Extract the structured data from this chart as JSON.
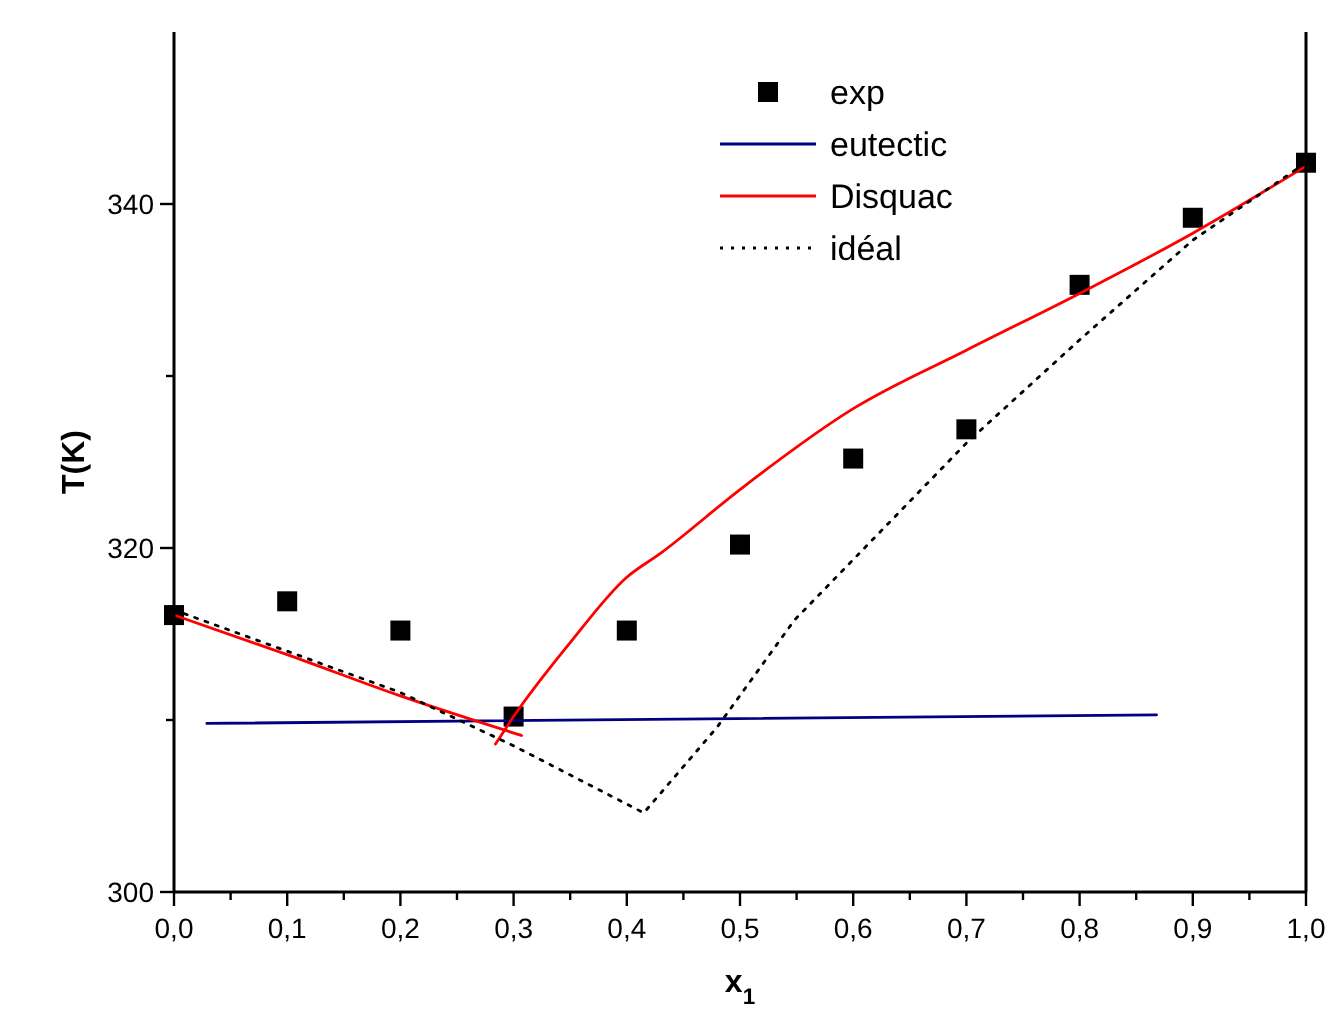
{
  "chart_data": {
    "type": "line",
    "xlabel": "x$_{1}$",
    "ylabel": "T(K)",
    "xlim": [
      0,
      1
    ],
    "ylim": [
      300,
      350
    ],
    "xticks": [
      {
        "value": 0,
        "label": "0,0"
      },
      {
        "value": 0.05,
        "label": null
      },
      {
        "value": 0.1,
        "label": "0,1"
      },
      {
        "value": 0.15,
        "label": null
      },
      {
        "value": 0.2,
        "label": "0,2"
      },
      {
        "value": 0.25,
        "label": null
      },
      {
        "value": 0.3,
        "label": "0,3"
      },
      {
        "value": 0.35,
        "label": null
      },
      {
        "value": 0.4,
        "label": "0,4"
      },
      {
        "value": 0.45,
        "label": null
      },
      {
        "value": 0.5,
        "label": "0,5"
      },
      {
        "value": 0.55,
        "label": null
      },
      {
        "value": 0.6,
        "label": "0,6"
      },
      {
        "value": 0.65,
        "label": null
      },
      {
        "value": 0.7,
        "label": "0,7"
      },
      {
        "value": 0.75,
        "label": null
      },
      {
        "value": 0.8,
        "label": "0,8"
      },
      {
        "value": 0.85,
        "label": null
      },
      {
        "value": 0.9,
        "label": "0,9"
      },
      {
        "value": 0.95,
        "label": null
      },
      {
        "value": 1,
        "label": "1,0"
      }
    ],
    "yticks": [
      300,
      {
        "value": 310,
        "label": null
      },
      320,
      {
        "value": 330,
        "label": null
      },
      340
    ],
    "legend": "top",
    "grid": false,
    "series": [
      {
        "name": "exp",
        "type": "scatter",
        "marker": "square",
        "color": "#000000",
        "x": [
          0,
          0.1,
          0.2,
          0.3,
          0.4,
          0.5,
          0.6,
          0.7,
          0.8,
          0.9,
          1
        ],
        "values": [
          316.1,
          316.9,
          315.2,
          310.2,
          315.2,
          320.2,
          325.2,
          326.9,
          335.3,
          339.2,
          342.4
        ]
      },
      {
        "name": "eutectic",
        "color": "#000080",
        "line_style": "solid",
        "x": [
          0.029,
          0.868
        ],
        "values": [
          309.8,
          310.3
        ]
      },
      {
        "name": "Disquac",
        "color": "#ff0000",
        "line_style": "solid",
        "x": [
          0,
          0.1,
          0.2,
          0.307
        ],
        "values": [
          316.1,
          313.8,
          311.4,
          309.1
        ]
      },
      {
        "color": "#ff0000",
        "line_style": "solid",
        "x": [
          0.284,
          0.3,
          0.35,
          0.4,
          0.43,
          0.5,
          0.6,
          0.7,
          0.8,
          0.9,
          1
        ],
        "values": [
          308.6,
          310.2,
          314.5,
          318.3,
          319.7,
          323.4,
          328.1,
          331.5,
          334.8,
          338.3,
          342.2
        ]
      },
      {
        "name": "idéal",
        "color": "#000000",
        "line_style": "dotted",
        "x": [
          0,
          0.2,
          0.3,
          0.415,
          0.48,
          0.548,
          0.7,
          0.8,
          0.9,
          1
        ],
        "values": [
          316.4,
          311.6,
          308.5,
          304.6,
          309.6,
          315.8,
          326.1,
          332.1,
          337.9,
          342.4
        ]
      }
    ]
  }
}
